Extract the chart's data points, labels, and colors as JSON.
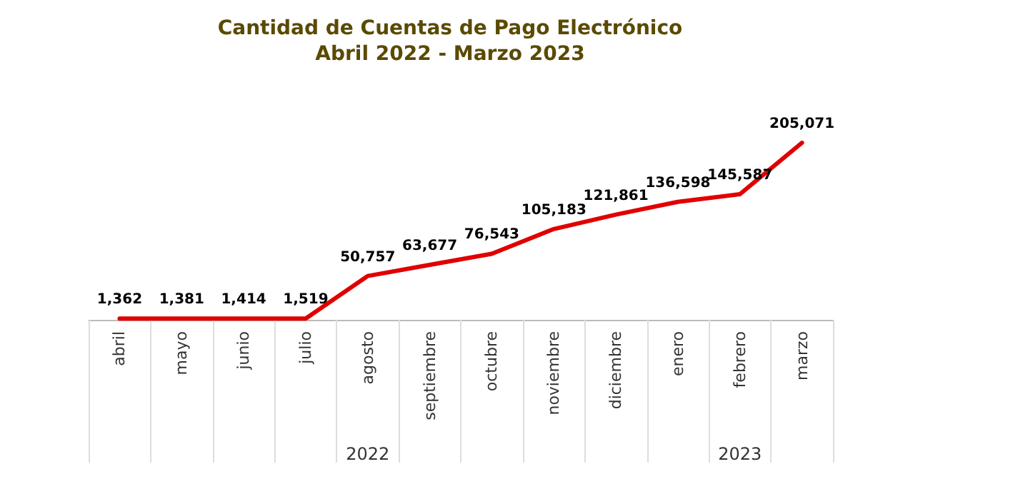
{
  "chart_data": {
    "type": "line",
    "title": "Cantidad de Cuentas de Pago Electrónico",
    "subtitle": "Abril 2022 - Marzo 2023",
    "categories": [
      "abril",
      "mayo",
      "junio",
      "julio",
      "agosto",
      "septiembre",
      "octubre",
      "noviembre",
      "diciembre",
      "enero",
      "febrero",
      "marzo"
    ],
    "series": [
      {
        "color": "#e00000",
        "values": [
          1362,
          1381,
          1414,
          1519,
          50757,
          63677,
          76543,
          105183,
          121861,
          136598,
          145587,
          205071
        ],
        "value_labels": [
          "1,362",
          "1,381",
          "1,414",
          "1,519",
          "50,757",
          "63,677",
          "76,543",
          "105,183",
          "121,861",
          "136,598",
          "145,587",
          "205,071"
        ]
      }
    ],
    "annotations": [
      "2022",
      "2023"
    ],
    "marker": "none",
    "line_style": "solid"
  }
}
